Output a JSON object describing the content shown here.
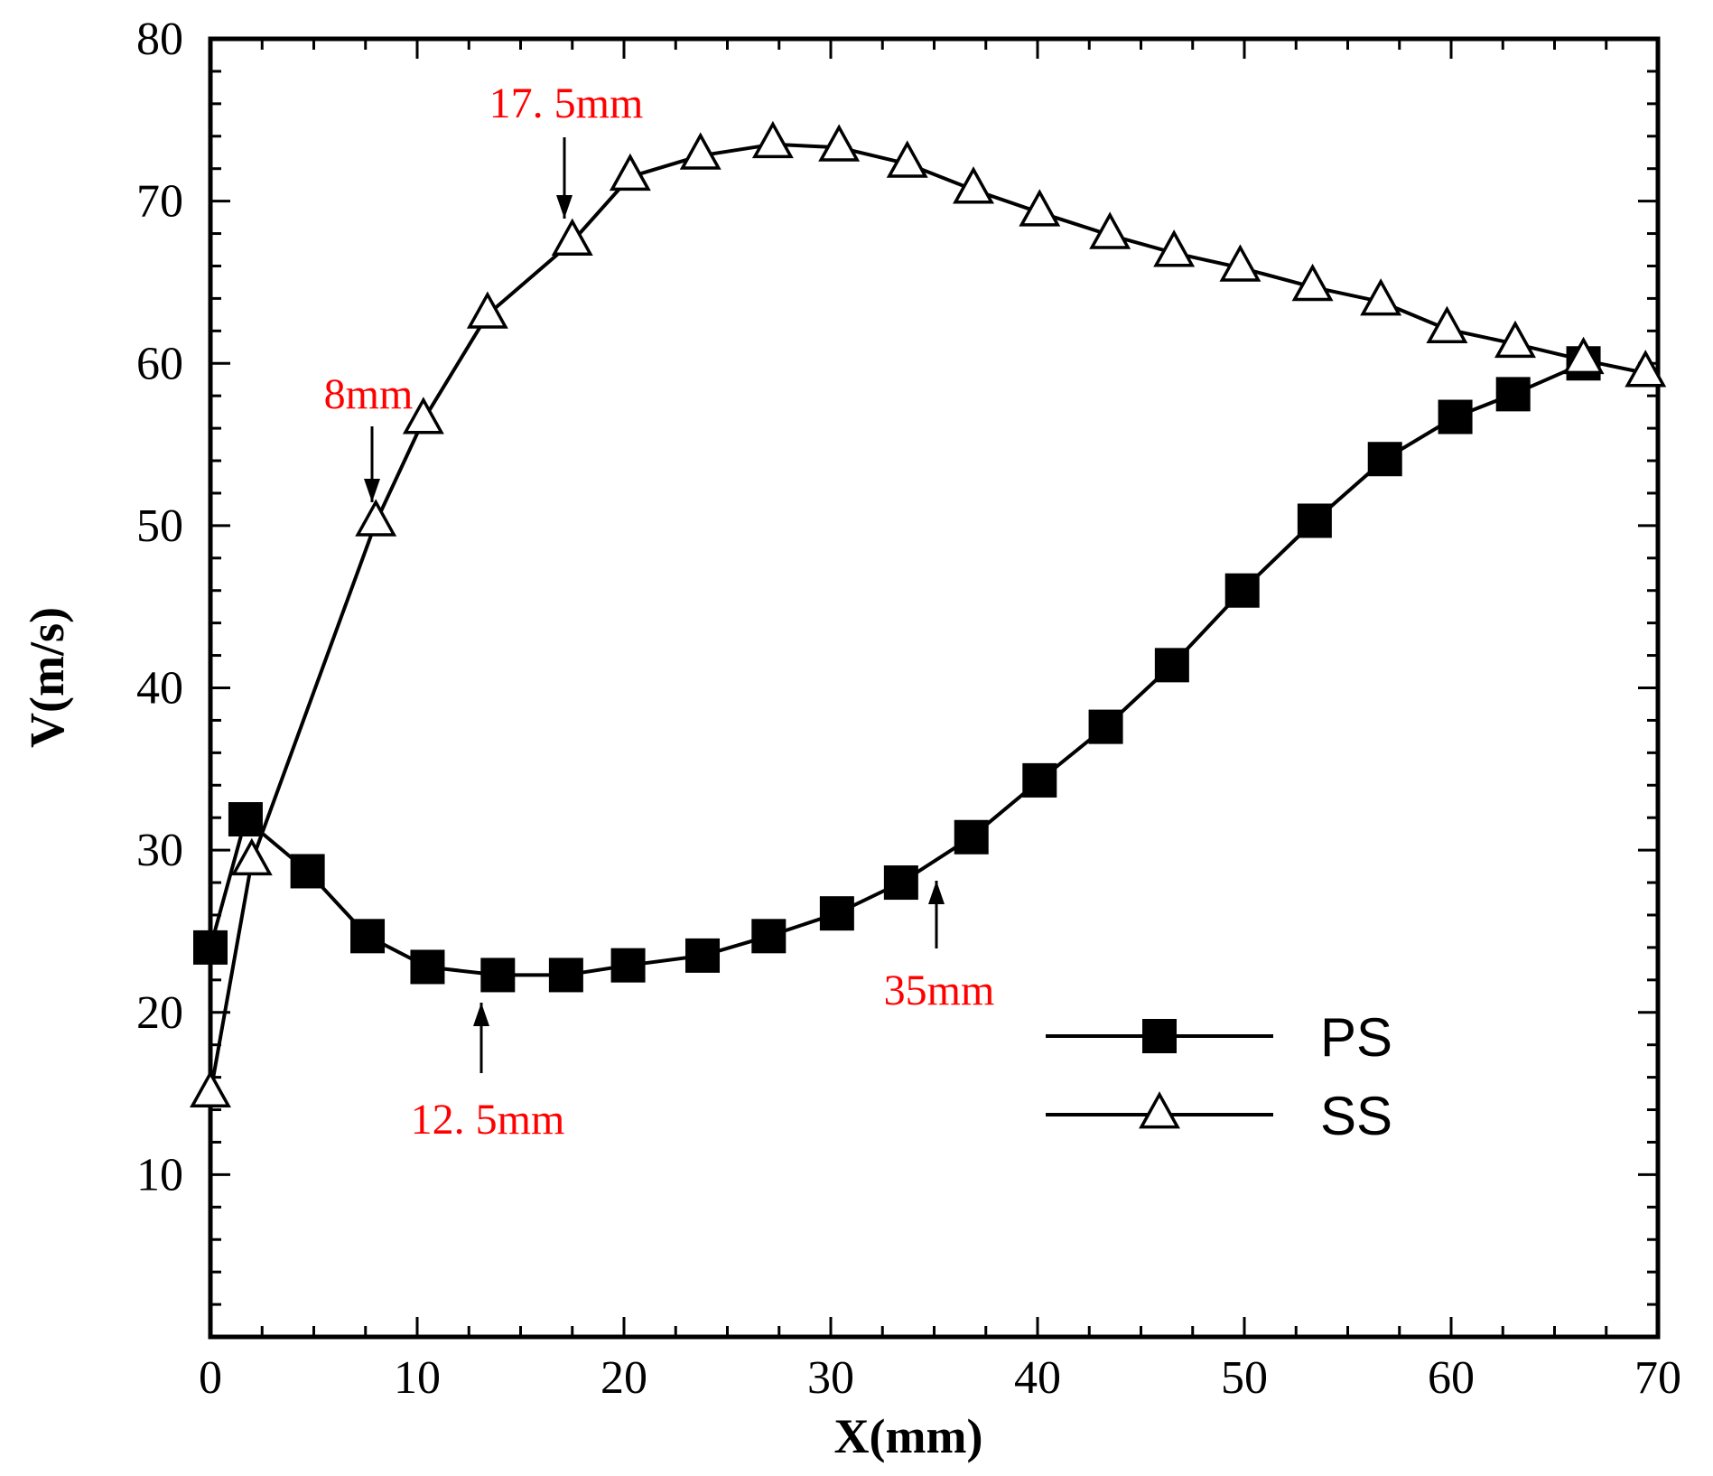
{
  "chart_data": {
    "type": "line",
    "title": "",
    "xlabel": "X(mm)",
    "ylabel": "V(m/s)",
    "xlim": [
      0,
      70
    ],
    "ylim": [
      0,
      80
    ],
    "x_ticks": [
      0,
      10,
      20,
      30,
      40,
      50,
      60,
      70
    ],
    "y_ticks": [
      10,
      20,
      30,
      40,
      50,
      60,
      70,
      80
    ],
    "x_tick_labels": [
      "0",
      "10",
      "20",
      "30",
      "40",
      "50",
      "60",
      "70"
    ],
    "y_tick_labels": [
      "10",
      "20",
      "30",
      "40",
      "50",
      "60",
      "70",
      "80"
    ],
    "grid": false,
    "legend_position": "lower-right",
    "series": [
      {
        "name": "PS",
        "marker": "filled-square",
        "color": "#000000",
        "x": [
          0,
          1.7,
          4.7,
          7.6,
          10.5,
          13.9,
          17.2,
          20.2,
          23.8,
          27.0,
          30.3,
          33.4,
          36.8,
          40.1,
          43.3,
          46.5,
          49.9,
          53.4,
          56.8,
          60.2,
          63.0,
          66.4
        ],
        "y": [
          24.0,
          31.9,
          28.7,
          24.7,
          22.8,
          22.3,
          22.3,
          22.9,
          23.5,
          24.7,
          26.1,
          28.0,
          30.8,
          34.3,
          37.6,
          41.4,
          46.0,
          50.3,
          54.1,
          56.7,
          58.1,
          60.0
        ]
      },
      {
        "name": "SS",
        "marker": "open-triangle",
        "color": "#000000",
        "x": [
          0,
          2.0,
          8.0,
          10.3,
          13.4,
          17.5,
          20.3,
          23.7,
          27.2,
          30.4,
          33.7,
          36.9,
          40.1,
          43.5,
          46.6,
          49.8,
          53.3,
          56.6,
          59.8,
          63.1,
          66.4,
          69.4
        ],
        "y": [
          15.0,
          29.3,
          50.2,
          56.5,
          63.0,
          67.5,
          71.5,
          72.8,
          73.5,
          73.3,
          72.3,
          70.7,
          69.3,
          67.9,
          66.8,
          65.9,
          64.7,
          63.8,
          62.1,
          61.2,
          60.2,
          59.4
        ]
      }
    ],
    "annotations": [
      {
        "label": "17. 5mm",
        "x": 17.5,
        "y": 67.5,
        "direction": "down",
        "color": "#ff0000"
      },
      {
        "label": "8mm",
        "x": 8.0,
        "y": 50.2,
        "direction": "down",
        "color": "#ff0000"
      },
      {
        "label": "12. 5mm",
        "x": 13.2,
        "y": 22.3,
        "direction": "up",
        "color": "#ff0000"
      },
      {
        "label": "35mm",
        "x": 35.0,
        "y": 28.8,
        "direction": "up",
        "color": "#ff0000"
      }
    ]
  }
}
